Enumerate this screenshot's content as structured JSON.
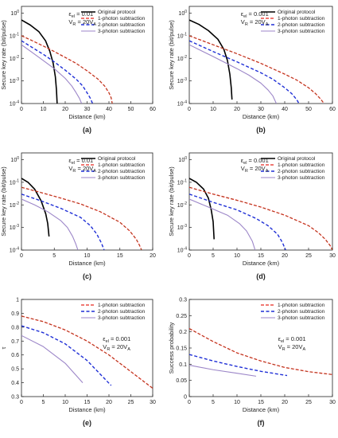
{
  "figure": {
    "colors": {
      "Original protocol": "#000000",
      "1-photon subtraction": "#e8281e",
      "2-photon subtraction": "#1f2fd6",
      "3-photon subtraction": "#9c86c8",
      "one_photon_inner": "#3c6e2a",
      "axis": "#222222"
    },
    "chart_data": [
      {
        "panel_label": "(a)",
        "type": "line",
        "yscale": "log",
        "xlabel": "Distance (km)",
        "ylabel": "Secure key rate (bit/pulse)",
        "xlim": [
          0,
          60
        ],
        "ylim": [
          0.0001,
          2
        ],
        "xticks": [
          0,
          10,
          20,
          30,
          40,
          50,
          60
        ],
        "xtick_labels": [
          "0",
          "10",
          "20",
          "30",
          "40",
          "50",
          "60"
        ],
        "yticks": [
          0.0001,
          0.001,
          0.01,
          0.1,
          1
        ],
        "ytick_labels": [
          [
            "10",
            "-4"
          ],
          [
            "10",
            "-3"
          ],
          [
            "10",
            "-2"
          ],
          [
            "10",
            "-1"
          ],
          [
            "10",
            "0"
          ]
        ],
        "legend": [
          "Original protocol",
          "1-photon subtraction",
          "2-photon subtraction",
          "3-photon subtraction"
        ],
        "annotation": [
          {
            "main": "ε",
            "sub": "el",
            "rest": " = 0.01"
          },
          {
            "main": "V",
            "sub": "R",
            "rest": " = 20V",
            "sub2": "A"
          }
        ],
        "series": [
          {
            "name": "Original protocol",
            "x": [
              0,
              4,
              8,
              11,
              13,
              14.5,
              15.5,
              16,
              16.3
            ],
            "y": [
              0.5,
              0.3,
              0.15,
              0.06,
              0.02,
              0.006,
              0.0015,
              0.0004,
              0.0001
            ]
          },
          {
            "name": "1-photon subtraction",
            "x": [
              0,
              5,
              10,
              15,
              20,
              25,
              30,
              35,
              38,
              40,
              41,
              41.5
            ],
            "y": [
              0.1,
              0.06,
              0.035,
              0.02,
              0.011,
              0.006,
              0.0028,
              0.0012,
              0.0006,
              0.0003,
              0.00018,
              0.0001
            ]
          },
          {
            "name": "2-photon subtraction",
            "x": [
              0,
              5,
              10,
              15,
              20,
              25,
              28,
              30,
              31.5,
              32.5
            ],
            "y": [
              0.06,
              0.03,
              0.015,
              0.007,
              0.003,
              0.0012,
              0.0006,
              0.0003,
              0.00017,
              0.0001
            ]
          },
          {
            "name": "3-photon subtraction",
            "x": [
              0,
              5,
              10,
              15,
              20,
              23,
              25,
              26.5,
              27.5
            ],
            "y": [
              0.04,
              0.018,
              0.008,
              0.0035,
              0.0013,
              0.0006,
              0.0003,
              0.00017,
              0.0001
            ]
          }
        ]
      },
      {
        "panel_label": "(b)",
        "type": "line",
        "yscale": "log",
        "xlabel": "Distance (km)",
        "ylabel": "Secure key rate (bit/pulse)",
        "xlim": [
          0,
          60
        ],
        "ylim": [
          0.0001,
          2
        ],
        "xticks": [
          0,
          10,
          20,
          30,
          40,
          50,
          60
        ],
        "xtick_labels": [
          "0",
          "10",
          "20",
          "30",
          "40",
          "50",
          "60"
        ],
        "yticks": [
          0.0001,
          0.001,
          0.01,
          0.1,
          1
        ],
        "ytick_labels": [
          [
            "10",
            "-4"
          ],
          [
            "10",
            "-3"
          ],
          [
            "10",
            "-2"
          ],
          [
            "10",
            "-1"
          ],
          [
            "10",
            "0"
          ]
        ],
        "legend": [
          "Original protocol",
          "1-photon subtraction",
          "2-photon subtraction",
          "3-photon subtraction"
        ],
        "annotation": [
          {
            "main": "ε",
            "sub": "el",
            "rest": " = 0.001"
          },
          {
            "main": "V",
            "sub": "R",
            "rest": " = 20V",
            "sub2": "A"
          }
        ],
        "series": [
          {
            "name": "Original protocol",
            "x": [
              0,
              4,
              8,
              12,
              14.5,
              16,
              17,
              17.6,
              17.9
            ],
            "y": [
              0.5,
              0.32,
              0.17,
              0.07,
              0.025,
              0.008,
              0.002,
              0.0005,
              0.00015
            ]
          },
          {
            "name": "1-photon subtraction",
            "x": [
              0,
              10,
              20,
              30,
              40,
              45,
              50,
              53,
              55,
              56.5
            ],
            "y": [
              0.1,
              0.04,
              0.016,
              0.006,
              0.002,
              0.0011,
              0.0005,
              0.00027,
              0.00016,
              0.0001
            ]
          },
          {
            "name": "2-photon subtraction",
            "x": [
              0,
              10,
              20,
              30,
              35,
              40,
              43,
              45,
              46
            ],
            "y": [
              0.06,
              0.02,
              0.007,
              0.0023,
              0.0012,
              0.0005,
              0.00027,
              0.00015,
              0.0001
            ]
          },
          {
            "name": "3-photon subtraction",
            "x": [
              0,
              10,
              20,
              25,
              30,
              33,
              35,
              36.5
            ],
            "y": [
              0.04,
              0.012,
              0.0035,
              0.0018,
              0.0008,
              0.0004,
              0.00022,
              0.0001
            ]
          }
        ]
      },
      {
        "panel_label": "(c)",
        "type": "line",
        "yscale": "log",
        "xlabel": "Distance (km)",
        "ylabel": "Secure key rate (bit/pulse)",
        "xlim": [
          0,
          20
        ],
        "ylim": [
          0.0001,
          2
        ],
        "xticks": [
          0,
          5,
          10,
          15,
          20
        ],
        "xtick_labels": [
          "0",
          "5",
          "10",
          "15",
          "20"
        ],
        "yticks": [
          0.0001,
          0.001,
          0.01,
          0.1,
          1
        ],
        "ytick_labels": [
          [
            "10",
            "-4"
          ],
          [
            "10",
            "-3"
          ],
          [
            "10",
            "-2"
          ],
          [
            "10",
            "-1"
          ],
          [
            "10",
            "0"
          ]
        ],
        "legend": [
          "Original protocol",
          "1-photon subtraction",
          "2-photon subtraction",
          "3-photon subtraction"
        ],
        "annotation": [
          {
            "main": "ε",
            "sub": "el",
            "rest": " = 0.01"
          },
          {
            "main": "V",
            "sub": "R",
            "rest": " = 20V",
            "sub2": "A"
          }
        ],
        "series": [
          {
            "name": "Original protocol",
            "x": [
              0,
              1,
              2,
              3,
              3.7,
              4,
              4.2
            ],
            "y": [
              0.15,
              0.1,
              0.05,
              0.015,
              0.004,
              0.0015,
              0.0004
            ]
          },
          {
            "name": "1-photon subtraction",
            "x": [
              0,
              3,
              6,
              9,
              12,
              15,
              16.5,
              17.5,
              18,
              18.3
            ],
            "y": [
              0.06,
              0.035,
              0.02,
              0.011,
              0.005,
              0.0017,
              0.0007,
              0.0003,
              0.00016,
              0.0001
            ]
          },
          {
            "name": "2-photon subtraction",
            "x": [
              0,
              3,
              6,
              9,
              10.5,
              11.5,
              12.2,
              12.6
            ],
            "y": [
              0.03,
              0.015,
              0.007,
              0.0028,
              0.0012,
              0.0005,
              0.0002,
              0.0001
            ]
          },
          {
            "name": "3-photon subtraction",
            "x": [
              0,
              2,
              4,
              6,
              7,
              7.8,
              8.3,
              8.6
            ],
            "y": [
              0.018,
              0.01,
              0.005,
              0.002,
              0.001,
              0.0004,
              0.00018,
              0.0001
            ]
          }
        ]
      },
      {
        "panel_label": "(d)",
        "type": "line",
        "yscale": "log",
        "xlabel": "Distance (km)",
        "ylabel": "Secure key rate (bit/pulse)",
        "xlim": [
          0,
          30
        ],
        "ylim": [
          0.0001,
          2
        ],
        "xticks": [
          0,
          5,
          10,
          15,
          20,
          25,
          30
        ],
        "xtick_labels": [
          "0",
          "5",
          "10",
          "15",
          "20",
          "25",
          "30"
        ],
        "yticks": [
          0.0001,
          0.001,
          0.01,
          0.1,
          1
        ],
        "ytick_labels": [
          [
            "10",
            "-4"
          ],
          [
            "10",
            "-3"
          ],
          [
            "10",
            "-2"
          ],
          [
            "10",
            "-1"
          ],
          [
            "10",
            "0"
          ]
        ],
        "legend": [
          "Original protocol",
          "1-photon subtraction",
          "2-photon subtraction",
          "3-photon subtraction"
        ],
        "annotation": [
          {
            "main": "ε",
            "sub": "el",
            "rest": " = 0.001"
          },
          {
            "main": "V",
            "sub": "R",
            "rest": " = 20V",
            "sub2": "A"
          }
        ],
        "series": [
          {
            "name": "Original protocol",
            "x": [
              0,
              1.5,
              3,
              4,
              4.6,
              5,
              5.2
            ],
            "y": [
              0.15,
              0.1,
              0.05,
              0.02,
              0.006,
              0.0018,
              0.0003
            ]
          },
          {
            "name": "1-photon subtraction",
            "x": [
              0,
              5,
              10,
              15,
              20,
              25,
              27,
              28.5,
              29.5,
              30
            ],
            "y": [
              0.06,
              0.03,
              0.016,
              0.008,
              0.0035,
              0.0012,
              0.0006,
              0.0003,
              0.00016,
              0.0001
            ]
          },
          {
            "name": "2-photon subtraction",
            "x": [
              0,
              5,
              10,
              14,
              16.5,
              18.5,
              19.5,
              20.2
            ],
            "y": [
              0.03,
              0.013,
              0.006,
              0.0025,
              0.0012,
              0.0005,
              0.00022,
              0.0001
            ]
          },
          {
            "name": "3-photon subtraction",
            "x": [
              0,
              4,
              8,
              10.5,
              12,
              13.2,
              13.8
            ],
            "y": [
              0.018,
              0.008,
              0.0035,
              0.0015,
              0.0007,
              0.00025,
              0.0001
            ]
          }
        ]
      },
      {
        "panel_label": "(e)",
        "type": "line",
        "yscale": "linear",
        "xlabel": "Distance (km)",
        "ylabel": "τ",
        "xlim": [
          0,
          30
        ],
        "ylim": [
          0.3,
          1.0
        ],
        "xticks": [
          0,
          5,
          10,
          15,
          20,
          25,
          30
        ],
        "xtick_labels": [
          "0",
          "5",
          "10",
          "15",
          "20",
          "25",
          "30"
        ],
        "yticks": [
          0.3,
          0.4,
          0.5,
          0.6,
          0.7,
          0.8,
          0.9,
          1.0
        ],
        "ytick_labels": [
          "0.3",
          "0.4",
          "0.5",
          "0.6",
          "0.7",
          "0.8",
          "0.9",
          "1"
        ],
        "legend": [
          "1-photon subtraction",
          "2-photon subtraction",
          "3-photon subtraction"
        ],
        "annotation": [
          {
            "main": "ε",
            "sub": "el",
            "rest": " = 0.001"
          },
          {
            "main": "V",
            "sub": "R",
            "rest": " = 20V",
            "sub2": "A"
          }
        ],
        "series": [
          {
            "name": "1-photon subtraction",
            "x": [
              0,
              5,
              10,
              15,
              20,
              25,
              30
            ],
            "y": [
              0.88,
              0.84,
              0.78,
              0.7,
              0.6,
              0.48,
              0.36
            ]
          },
          {
            "name": "2-photon subtraction",
            "x": [
              0,
              5,
              10,
              15,
              20.5
            ],
            "y": [
              0.81,
              0.76,
              0.68,
              0.56,
              0.38
            ]
          },
          {
            "name": "3-photon subtraction",
            "x": [
              0,
              5,
              10,
              14
            ],
            "y": [
              0.74,
              0.66,
              0.54,
              0.4
            ]
          }
        ]
      },
      {
        "panel_label": "(f)",
        "type": "line",
        "yscale": "linear",
        "xlabel": "Distance (km)",
        "ylabel": "Success probability",
        "xlim": [
          0,
          30
        ],
        "ylim": [
          0,
          0.3
        ],
        "xticks": [
          0,
          5,
          10,
          15,
          20,
          25,
          30
        ],
        "xtick_labels": [
          "0",
          "5",
          "10",
          "15",
          "20",
          "25",
          "30"
        ],
        "yticks": [
          0,
          0.05,
          0.1,
          0.15,
          0.2,
          0.25,
          0.3
        ],
        "ytick_labels": [
          "0",
          "0.05",
          "0.1",
          "0.15",
          "0.2",
          "0.25",
          "0.3"
        ],
        "legend": [
          "1-photon subtraction",
          "2-photon subtraction",
          "3-photon subtraction"
        ],
        "annotation": [
          {
            "main": "ε",
            "sub": "el",
            "rest": " = 0.001"
          },
          {
            "main": "V",
            "sub": "R",
            "rest": " = 20V",
            "sub2": "A"
          }
        ],
        "series": [
          {
            "name": "1-photon subtraction",
            "x": [
              0,
              5,
              10,
              15,
              20,
              25,
              30
            ],
            "y": [
              0.21,
              0.17,
              0.135,
              0.11,
              0.09,
              0.077,
              0.068
            ]
          },
          {
            "name": "2-photon subtraction",
            "x": [
              0,
              5,
              10,
              15,
              20.5
            ],
            "y": [
              0.13,
              0.11,
              0.093,
              0.078,
              0.065
            ]
          },
          {
            "name": "3-photon subtraction",
            "x": [
              0,
              5,
              10,
              14
            ],
            "y": [
              0.097,
              0.083,
              0.072,
              0.063
            ]
          }
        ]
      }
    ]
  }
}
